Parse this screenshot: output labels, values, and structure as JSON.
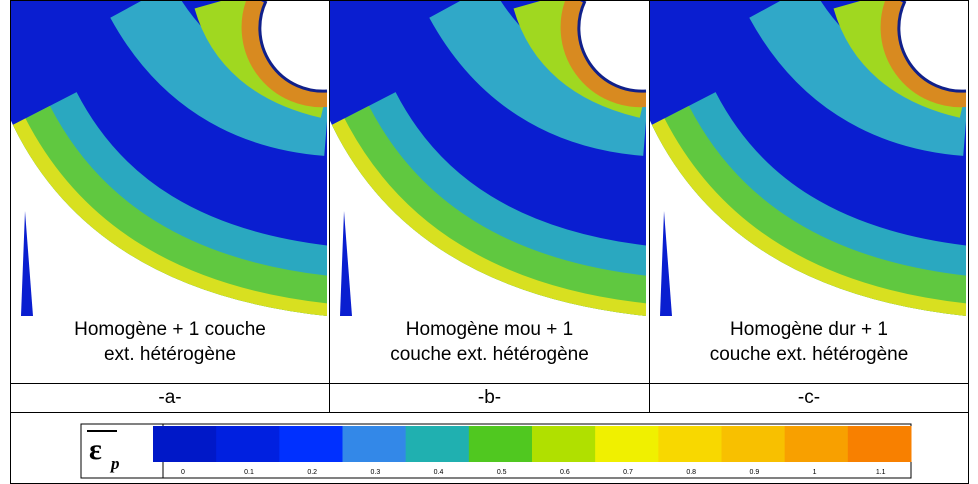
{
  "panels": [
    {
      "caption": [
        "Homogène + 1 couche",
        "ext. hétérogène"
      ],
      "label": "-a-"
    },
    {
      "caption": [
        "Homogène mou + 1",
        "couche ext. hétérogène"
      ],
      "label": "-b-"
    },
    {
      "caption": [
        "Homogène dur + 1",
        "couche ext. hétérogène"
      ],
      "label": "-c-"
    }
  ],
  "colorbar": {
    "symbol": "ε",
    "subscript": "p",
    "ticks": [
      0,
      0.1,
      0.2,
      0.3,
      0.4,
      0.5,
      0.6,
      0.7,
      0.8,
      0.9,
      1,
      1.1
    ],
    "colors": [
      "#0018c8",
      "#0020e0",
      "#0030ff",
      "#3388e8",
      "#20b0b0",
      "#50c820",
      "#b0e000",
      "#f0f000",
      "#f8d800",
      "#f8c000",
      "#f8a000",
      "#f88000"
    ]
  }
}
